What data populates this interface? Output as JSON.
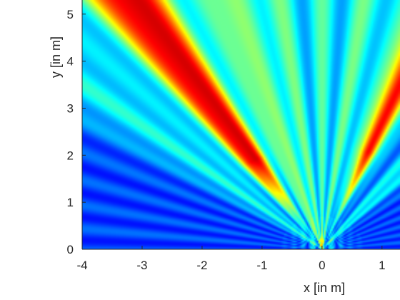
{
  "chart_data": {
    "type": "heatmap",
    "xlabel": "x [in m]",
    "ylabel": "y [in m]",
    "xlim": [
      -4,
      1.3
    ],
    "ylim": [
      0,
      5.3
    ],
    "xticks": [
      "-4",
      "-3",
      "-2",
      "-1",
      "0",
      "1"
    ],
    "yticks": [
      "0",
      "1",
      "2",
      "3",
      "4",
      "5"
    ],
    "colormap": "jet",
    "grid": false,
    "beams": [
      {
        "angle_deg": -31,
        "strength": 1.0
      },
      {
        "angle_deg": 20,
        "strength": 0.85
      },
      {
        "angle_deg": -17,
        "strength": 0.45
      },
      {
        "angle_deg": -8,
        "strength": 0.35
      },
      {
        "angle_deg": 0,
        "strength": 0.3
      },
      {
        "angle_deg": 8,
        "strength": 0.35
      },
      {
        "angle_deg": -48,
        "strength": 0.25
      },
      {
        "angle_deg": 38,
        "strength": 0.25
      }
    ],
    "source": {
      "x": 0,
      "y": 0
    }
  }
}
